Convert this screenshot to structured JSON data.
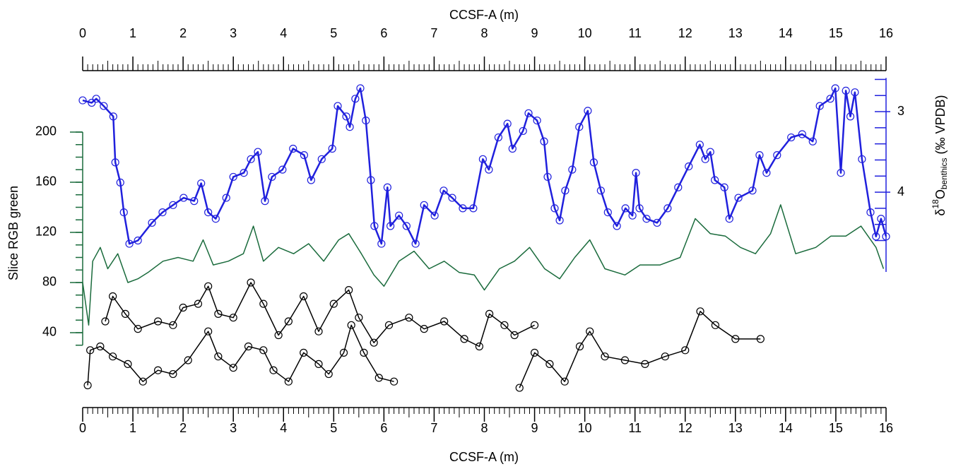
{
  "chart_data": {
    "type": "line",
    "xlabel": "CCSF-A (m)",
    "ylabel": "Slice RGB green",
    "y2label": [
      "δ",
      "18",
      "O",
      "benthics",
      " (‰ VPDB)"
    ],
    "xlim": [
      0,
      16
    ],
    "xticks": [
      0,
      1,
      2,
      3,
      4,
      5,
      6,
      7,
      8,
      9,
      10,
      11,
      12,
      13,
      14,
      15,
      16
    ],
    "xminor_step": 0.1,
    "ylim": [
      -15,
      260
    ],
    "yticks": [
      40,
      80,
      120,
      160,
      200
    ],
    "yminorticks": [
      30,
      40,
      50,
      60,
      70,
      80,
      90,
      100,
      110,
      120,
      130,
      140,
      150,
      160,
      170,
      180,
      190,
      200
    ],
    "y2lim": [
      6.6,
      2.32
    ],
    "y2ticks": [
      3,
      4
    ],
    "y2minorticks": [
      2.6,
      2.8,
      3.0,
      3.2,
      3.4,
      3.6,
      3.8,
      4.0,
      4.2,
      4.4,
      4.6
    ],
    "series": [
      {
        "color": "#1a6b3c",
        "axis": "y",
        "markers": false,
        "x": [
          0,
          0.12,
          0.2,
          0.35,
          0.5,
          0.7,
          0.9,
          1.1,
          1.3,
          1.6,
          1.9,
          2.2,
          2.4,
          2.6,
          2.9,
          3.2,
          3.4,
          3.6,
          3.9,
          4.2,
          4.5,
          4.8,
          5.1,
          5.3,
          5.55,
          5.8,
          6.0,
          6.3,
          6.6,
          6.9,
          7.2,
          7.5,
          7.8,
          8.0,
          8.3,
          8.6,
          8.9,
          9.2,
          9.5,
          9.8,
          10.1,
          10.4,
          10.8,
          11.1,
          11.5,
          11.9,
          12.2,
          12.5,
          12.8,
          13.1,
          13.4,
          13.7,
          13.9,
          14.2,
          14.6,
          14.9,
          15.2,
          15.5,
          15.8,
          15.95
        ],
        "values": [
          80,
          46,
          97,
          108,
          91,
          103,
          80,
          83,
          88,
          97,
          100,
          97,
          114,
          94,
          97,
          103,
          125,
          97,
          108,
          103,
          111,
          97,
          114,
          119,
          103,
          86,
          77,
          97,
          105,
          91,
          97,
          88,
          86,
          74,
          91,
          97,
          108,
          91,
          83,
          100,
          114,
          91,
          86,
          94,
          94,
          100,
          131,
          119,
          117,
          108,
          103,
          119,
          142,
          103,
          108,
          117,
          117,
          125,
          108,
          91
        ]
      },
      {
        "color": "#000000",
        "axis": "y",
        "markers": true,
        "x": [
          0.45,
          0.6,
          0.85,
          1.1,
          1.5,
          1.8,
          2.0,
          2.3,
          2.5,
          2.7,
          3.0,
          3.35,
          3.6,
          3.9,
          4.1,
          4.4,
          4.7,
          5.0,
          5.3,
          5.5,
          5.8,
          6.1,
          6.5,
          6.8,
          7.2,
          7.6,
          7.9,
          8.1,
          8.4,
          8.6,
          9.0
        ],
        "values": [
          49,
          69,
          55,
          43,
          49,
          46,
          60,
          63,
          77,
          55,
          52,
          80,
          63,
          38,
          49,
          69,
          41,
          63,
          74,
          52,
          32,
          46,
          52,
          43,
          49,
          35,
          29,
          55,
          46,
          38,
          46
        ]
      },
      {
        "color": "#000000",
        "axis": "y",
        "markers": true,
        "x": [
          0.1,
          0.15,
          0.35,
          0.6,
          0.9,
          1.2,
          1.5,
          1.8,
          2.1,
          2.5,
          2.7,
          3.0,
          3.3,
          3.6,
          3.8,
          4.1,
          4.4,
          4.7,
          4.9,
          5.2,
          5.35,
          5.6,
          5.9,
          6.2,
          null,
          8.7,
          9.0,
          9.3,
          9.6,
          9.9,
          10.1,
          10.4,
          10.8,
          11.2,
          11.6,
          12.0,
          12.3,
          12.6,
          13.0,
          13.5
        ],
        "values": [
          -2,
          26,
          29,
          21,
          15,
          1,
          10,
          7,
          18,
          41,
          21,
          12,
          29,
          26,
          10,
          1,
          24,
          15,
          7,
          24,
          46,
          24,
          4,
          1,
          null,
          -4,
          24,
          15,
          1,
          29,
          41,
          21,
          18,
          15,
          21,
          26,
          57,
          46,
          35,
          35
        ]
      },
      {
        "color": "#2020dd",
        "axis": "y2",
        "markers": true,
        "x": [
          0,
          0.18,
          0.27,
          0.42,
          0.61,
          0.65,
          0.75,
          0.82,
          0.93,
          1.1,
          1.38,
          1.59,
          1.8,
          2.01,
          2.22,
          2.36,
          2.5,
          2.65,
          2.86,
          3.0,
          3.21,
          3.35,
          3.49,
          3.63,
          3.77,
          3.98,
          4.19,
          4.41,
          4.55,
          4.76,
          4.97,
          5.08,
          5.25,
          5.32,
          5.43,
          5.53,
          5.64,
          5.74,
          5.81,
          5.95,
          6.07,
          6.13,
          6.3,
          6.45,
          6.63,
          6.8,
          7.01,
          7.19,
          7.36,
          7.57,
          7.78,
          7.97,
          8.09,
          8.28,
          8.46,
          8.56,
          8.77,
          8.88,
          9.05,
          9.19,
          9.26,
          9.4,
          9.5,
          9.61,
          9.75,
          9.89,
          10.06,
          10.18,
          10.32,
          10.46,
          10.64,
          10.81,
          10.95,
          11.02,
          11.09,
          11.23,
          11.44,
          11.65,
          11.86,
          12.07,
          12.29,
          12.4,
          12.5,
          12.59,
          12.78,
          12.88,
          13.06,
          13.34,
          13.48,
          13.62,
          13.83,
          14.11,
          14.33,
          14.54,
          14.68,
          14.89,
          14.99,
          15.1,
          15.2,
          15.29,
          15.38,
          15.52,
          15.69,
          15.8,
          15.9,
          16.0
        ],
        "values": [
          2.86,
          2.89,
          2.84,
          2.93,
          3.06,
          3.63,
          3.88,
          4.25,
          4.64,
          4.6,
          4.38,
          4.25,
          4.16,
          4.07,
          4.11,
          3.89,
          4.25,
          4.33,
          4.07,
          3.81,
          3.76,
          3.59,
          3.5,
          4.11,
          3.81,
          3.72,
          3.46,
          3.54,
          3.85,
          3.59,
          3.46,
          2.93,
          3.06,
          3.19,
          2.84,
          2.71,
          3.11,
          3.85,
          4.42,
          4.64,
          3.94,
          4.42,
          4.29,
          4.42,
          4.64,
          4.16,
          4.29,
          3.98,
          4.07,
          4.2,
          4.2,
          3.59,
          3.72,
          3.32,
          3.15,
          3.46,
          3.24,
          3.02,
          3.11,
          3.37,
          3.81,
          4.2,
          4.35,
          3.98,
          3.72,
          3.19,
          2.99,
          3.63,
          3.98,
          4.25,
          4.42,
          4.2,
          4.29,
          3.76,
          4.2,
          4.33,
          4.38,
          4.2,
          3.94,
          3.68,
          3.41,
          3.59,
          3.5,
          3.85,
          3.94,
          4.33,
          4.07,
          3.98,
          3.54,
          3.76,
          3.54,
          3.32,
          3.28,
          3.37,
          2.93,
          2.84,
          2.71,
          3.76,
          2.74,
          3.06,
          2.76,
          3.59,
          4.25,
          4.55,
          4.33,
          4.55
        ]
      }
    ]
  }
}
